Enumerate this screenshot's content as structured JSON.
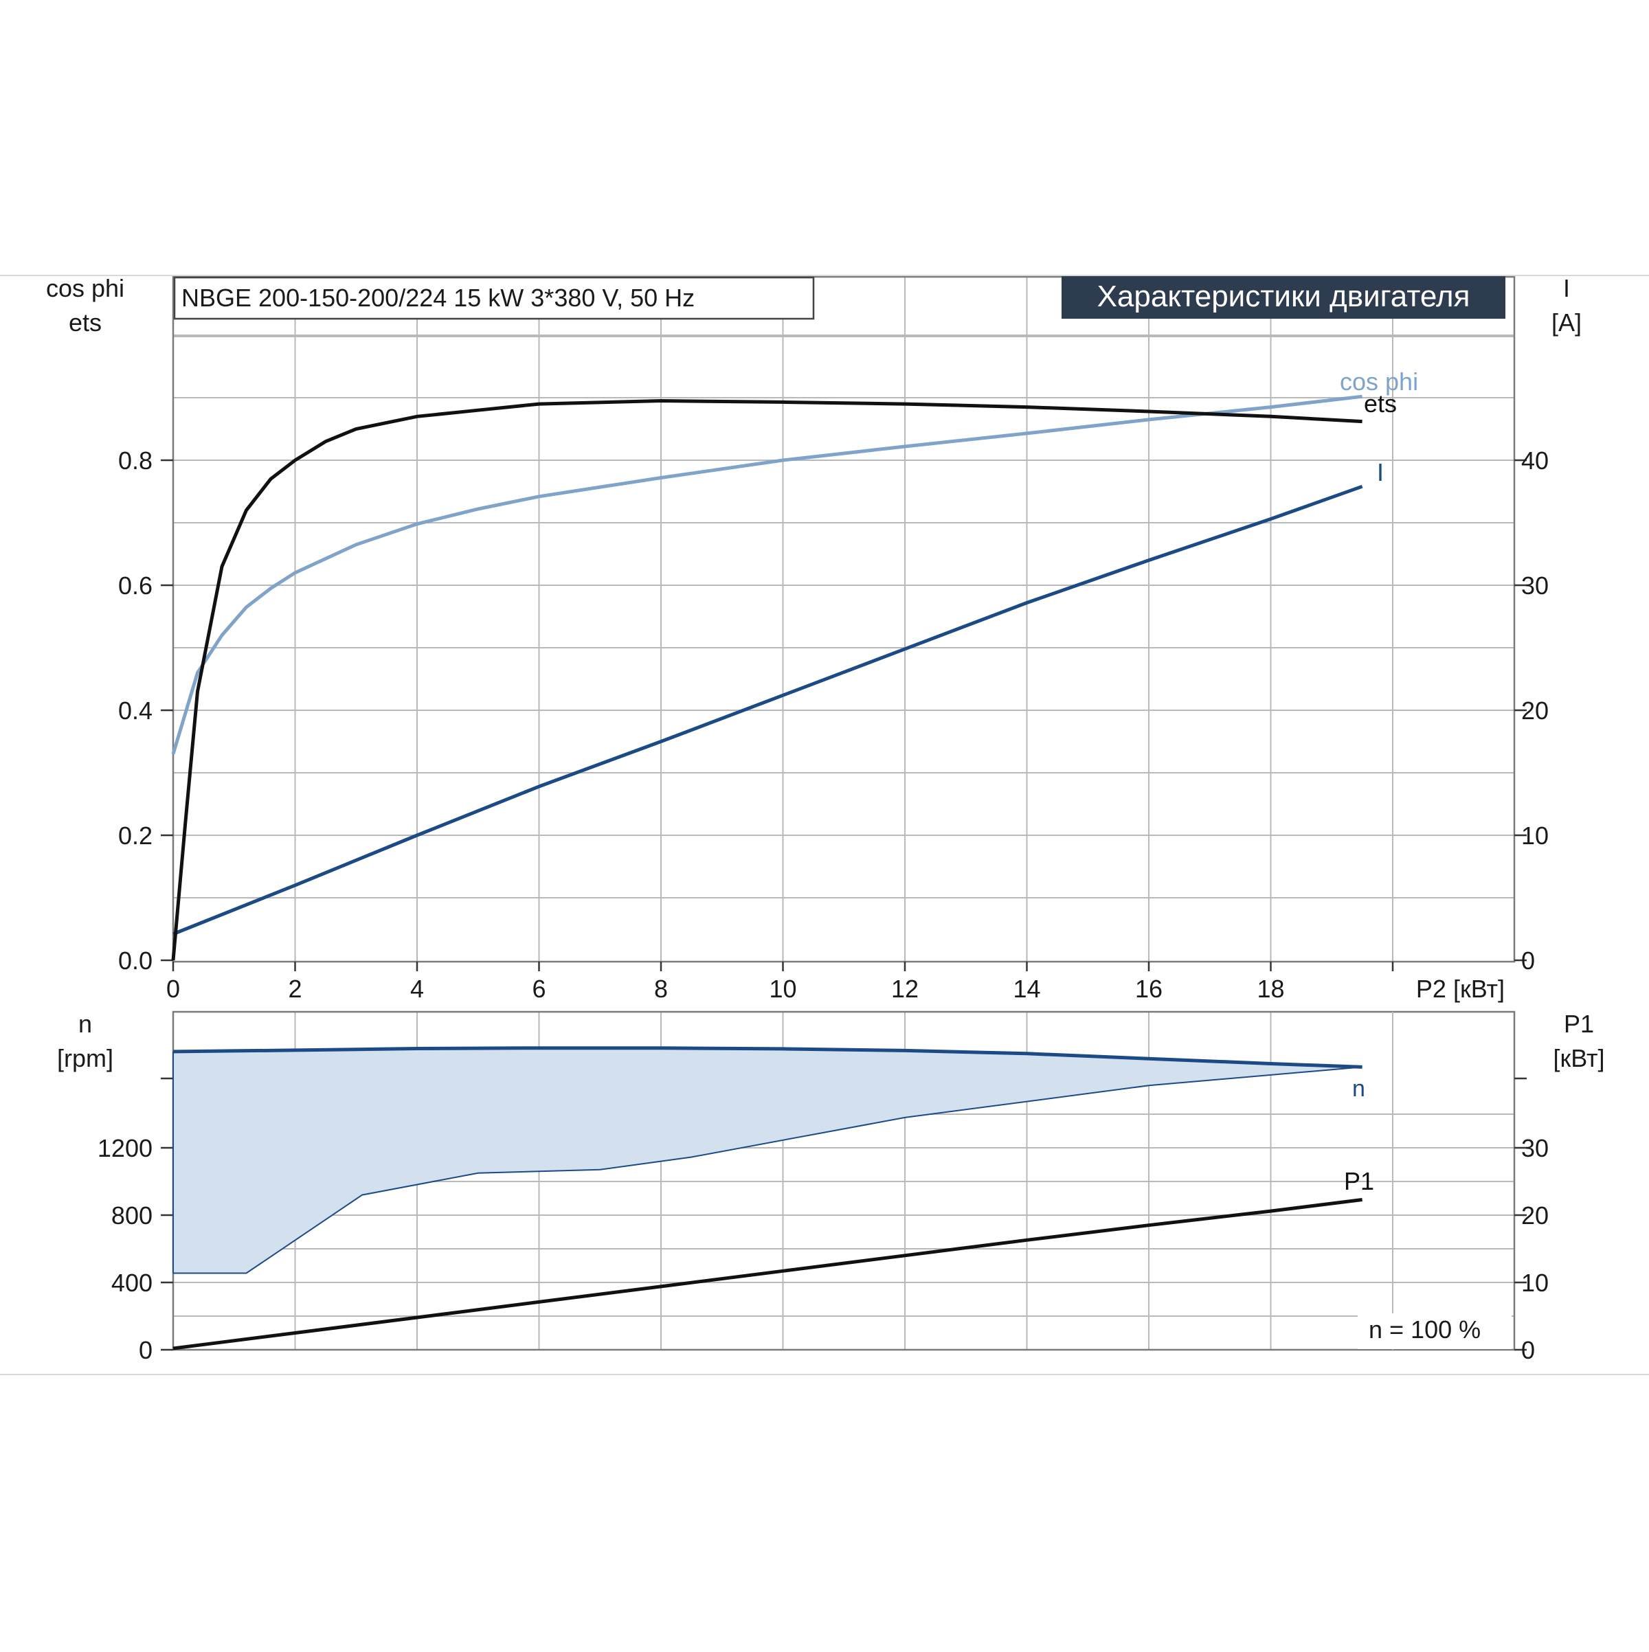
{
  "header": {
    "model": "NBGE 200-150-200/224   15 kW   3*380 V, 50 Hz",
    "title": "Характеристики двигателя"
  },
  "footer_note": "n = 100 %",
  "colors": {
    "ets": "#111111",
    "cos_phi": "#7fa3c9",
    "current": "#1b4a86",
    "speed": "#1b4a86",
    "speed_band": "#d3e0ee",
    "p1": "#111111",
    "title_bg": "#2e3c4f"
  },
  "chart_data": [
    {
      "type": "line",
      "x_label": "P2 [кВт]",
      "xlim": [
        0,
        22
      ],
      "x_ticks": [
        "0",
        "2",
        "4",
        "6",
        "8",
        "10",
        "12",
        "14",
        "16",
        "18"
      ],
      "left_axis": {
        "label_lines": [
          "cos phi",
          "ets"
        ],
        "ylim": [
          0,
          1.1
        ],
        "ticks": [
          "0.0",
          "0.2",
          "0.4",
          "0.6",
          "0.8"
        ]
      },
      "right_axis": {
        "label_lines": [
          "I",
          "[A]"
        ],
        "ylim": [
          0,
          55
        ],
        "ticks": [
          "0",
          "10",
          "20",
          "30",
          "40"
        ]
      },
      "grid": true,
      "series": [
        {
          "name": "ets",
          "axis": "left",
          "points": [
            [
              0,
              0
            ],
            [
              0.2,
              0.22
            ],
            [
              0.4,
              0.43
            ],
            [
              0.8,
              0.63
            ],
            [
              1.2,
              0.72
            ],
            [
              1.6,
              0.77
            ],
            [
              2,
              0.8
            ],
            [
              2.5,
              0.83
            ],
            [
              3,
              0.85
            ],
            [
              4,
              0.87
            ],
            [
              5,
              0.88
            ],
            [
              6,
              0.89
            ],
            [
              8,
              0.895
            ],
            [
              10,
              0.893
            ],
            [
              12,
              0.89
            ],
            [
              14,
              0.885
            ],
            [
              16,
              0.878
            ],
            [
              18,
              0.87
            ],
            [
              19.5,
              0.862
            ]
          ]
        },
        {
          "name": "cos phi",
          "axis": "left",
          "points": [
            [
              0,
              0.33
            ],
            [
              0.4,
              0.46
            ],
            [
              0.8,
              0.52
            ],
            [
              1.2,
              0.565
            ],
            [
              1.6,
              0.595
            ],
            [
              2,
              0.62
            ],
            [
              3,
              0.665
            ],
            [
              4,
              0.698
            ],
            [
              5,
              0.722
            ],
            [
              6,
              0.742
            ],
            [
              8,
              0.772
            ],
            [
              10,
              0.8
            ],
            [
              12,
              0.822
            ],
            [
              14,
              0.843
            ],
            [
              16,
              0.865
            ],
            [
              18,
              0.885
            ],
            [
              19.5,
              0.902
            ]
          ]
        },
        {
          "name": "I",
          "axis": "right",
          "points": [
            [
              0,
              2.1
            ],
            [
              2,
              6
            ],
            [
              4,
              10
            ],
            [
              6,
              13.9
            ],
            [
              8,
              17.5
            ],
            [
              10,
              21.2
            ],
            [
              12,
              24.9
            ],
            [
              14,
              28.6
            ],
            [
              16,
              32
            ],
            [
              18,
              35.3
            ],
            [
              19.5,
              37.9
            ]
          ]
        }
      ]
    },
    {
      "type": "line",
      "xlim": [
        0,
        22
      ],
      "left_axis": {
        "label_lines": [
          "n",
          "[rpm]"
        ],
        "ylim": [
          0,
          2000
        ],
        "ticks": [
          "0",
          "400",
          "800",
          "1200"
        ]
      },
      "right_axis": {
        "label_lines": [
          "P1",
          "[кВт]"
        ],
        "ylim": [
          0,
          50
        ],
        "ticks": [
          "0",
          "10",
          "20",
          "30"
        ]
      },
      "grid": true,
      "series": [
        {
          "name": "n",
          "axis": "left",
          "points": [
            [
              0,
              1772
            ],
            [
              2,
              1780
            ],
            [
              4,
              1790
            ],
            [
              6,
              1793
            ],
            [
              8,
              1793
            ],
            [
              10,
              1788
            ],
            [
              12,
              1778
            ],
            [
              14,
              1760
            ],
            [
              16,
              1730
            ],
            [
              18,
              1700
            ],
            [
              19.5,
              1680
            ]
          ]
        },
        {
          "name": "n_min",
          "axis": "left",
          "points": [
            [
              0,
              455
            ],
            [
              1.2,
              455
            ],
            [
              3.1,
              920
            ],
            [
              5,
              1050
            ],
            [
              7,
              1070
            ],
            [
              8.5,
              1145
            ],
            [
              12,
              1380
            ],
            [
              16,
              1570
            ],
            [
              19.5,
              1680
            ]
          ]
        },
        {
          "name": "P1",
          "axis": "right",
          "points": [
            [
              0,
              0.2
            ],
            [
              2,
              2.5
            ],
            [
              4,
              4.8
            ],
            [
              6,
              7.1
            ],
            [
              8,
              9.4
            ],
            [
              10,
              11.7
            ],
            [
              12,
              14
            ],
            [
              14,
              16.3
            ],
            [
              16,
              18.5
            ],
            [
              18,
              20.6
            ],
            [
              19.5,
              22.3
            ]
          ]
        }
      ]
    }
  ]
}
